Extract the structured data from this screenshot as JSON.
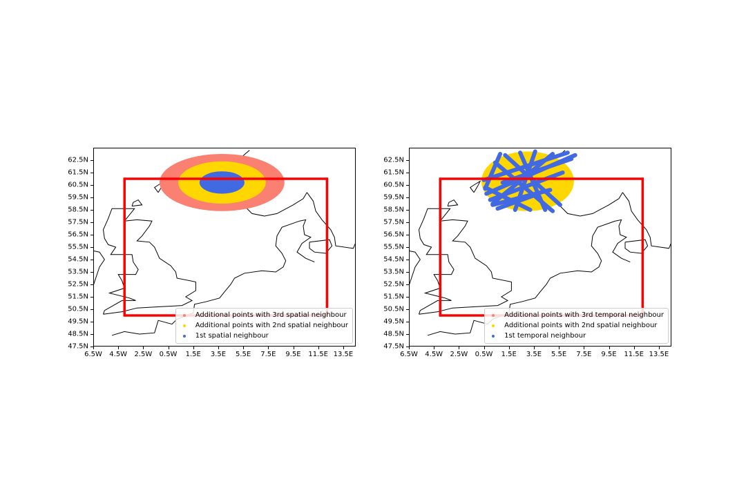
{
  "colors": {
    "third": "#fa8072",
    "second": "#ffd700",
    "first": "#4169e1",
    "box": "#ff0000",
    "coast": "#000000"
  },
  "axes": {
    "x_ticks": [
      "6.5W",
      "4.5W",
      "2.5W",
      "0.5W",
      "1.5E",
      "3.5E",
      "5.5E",
      "7.5E",
      "9.5E",
      "11.5E",
      "13.5E"
    ],
    "x_values": [
      -6.5,
      -4.5,
      -2.5,
      -0.5,
      1.5,
      3.5,
      5.5,
      7.5,
      9.5,
      11.5,
      13.5
    ],
    "y_ticks": [
      "62.5N",
      "61.5N",
      "60.5N",
      "59.5N",
      "58.5N",
      "57.5N",
      "56.5N",
      "55.5N",
      "54.5N",
      "53.5N",
      "52.5N",
      "51.5N",
      "50.5N",
      "49.5N",
      "48.5N",
      "47.5N"
    ],
    "y_values": [
      62.5,
      61.5,
      60.5,
      59.5,
      58.5,
      57.5,
      56.5,
      55.5,
      54.5,
      53.5,
      52.5,
      51.5,
      50.5,
      49.5,
      48.5,
      47.5
    ],
    "lon_range": [
      -6.5,
      14.5
    ],
    "lat_range": [
      47.5,
      63.5
    ]
  },
  "domain_box": {
    "lon": [
      -4,
      12.2
    ],
    "lat": [
      50,
      61
    ]
  },
  "panels": [
    {
      "kind": "spatial",
      "legend": [
        {
          "label": "Additional points with 3rd spatial neighbour",
          "color_key": "third"
        },
        {
          "label": "Additional points with 2nd spatial neighbour",
          "color_key": "second"
        },
        {
          "label": "1st spatial neighbour",
          "color_key": "first"
        }
      ],
      "rings": [
        {
          "color_key": "third",
          "center": [
            3.8,
            60.7
          ],
          "rx_deg": 5.0,
          "ry_deg": 2.3
        },
        {
          "color_key": "second",
          "center": [
            3.8,
            60.7
          ],
          "rx_deg": 3.5,
          "ry_deg": 1.7
        },
        {
          "color_key": "first",
          "center": [
            3.8,
            60.7
          ],
          "rx_deg": 1.8,
          "ry_deg": 0.9
        }
      ]
    },
    {
      "kind": "temporal",
      "legend": [
        {
          "label": "Additional points with 3rd temporal neighbour",
          "color_key": "third"
        },
        {
          "label": "Additional points with 2nd spatial neighbour",
          "color_key": "second"
        },
        {
          "label": "1st temporal neighbour",
          "color_key": "first"
        }
      ],
      "ellipse": {
        "color_key": "second",
        "center": [
          3.0,
          60.8
        ],
        "rx_deg": 3.7,
        "ry_deg": 2.4
      },
      "tracks": [
        [
          [
            -0.5,
            60.9
          ],
          [
            6.2,
            63.1
          ]
        ],
        [
          [
            -0.3,
            59.8
          ],
          [
            6.8,
            62.9
          ]
        ],
        [
          [
            0.0,
            59.3
          ],
          [
            5.8,
            61.5
          ]
        ],
        [
          [
            0.2,
            58.9
          ],
          [
            4.8,
            60.1
          ]
        ],
        [
          [
            0.6,
            58.6
          ],
          [
            3.6,
            59.7
          ]
        ],
        [
          [
            0.4,
            62.3
          ],
          [
            5.0,
            58.4
          ]
        ],
        [
          [
            1.2,
            62.9
          ],
          [
            5.6,
            58.9
          ]
        ],
        [
          [
            2.4,
            63.1
          ],
          [
            4.4,
            58.5
          ]
        ],
        [
          [
            3.6,
            63.2
          ],
          [
            2.0,
            58.5
          ]
        ],
        [
          [
            5.0,
            63.0
          ],
          [
            0.2,
            59.0
          ]
        ],
        [
          [
            0.8,
            63.0
          ],
          [
            -0.4,
            60.2
          ]
        ],
        [
          [
            -0.4,
            60.3
          ],
          [
            3.2,
            58.5
          ]
        ],
        [
          [
            1.0,
            60.7
          ],
          [
            6.5,
            62.6
          ]
        ]
      ]
    }
  ]
}
